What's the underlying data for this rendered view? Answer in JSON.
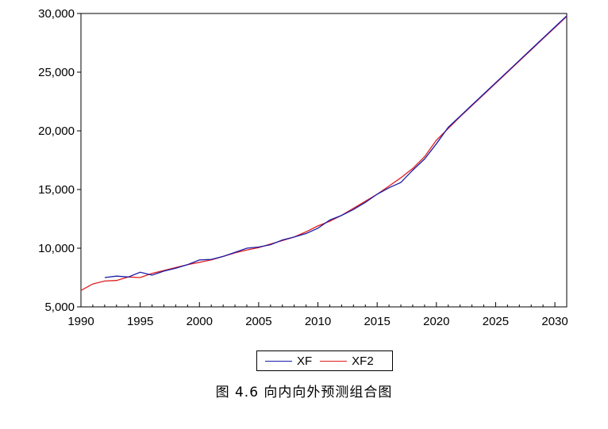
{
  "chart_data": {
    "type": "line",
    "title": "",
    "xlabel": "",
    "ylabel": "",
    "xlim": [
      1990,
      2031
    ],
    "ylim": [
      5000,
      30000
    ],
    "x_ticks": [
      1990,
      1995,
      2000,
      2005,
      2010,
      2015,
      2020,
      2025,
      2030
    ],
    "y_ticks": [
      5000,
      10000,
      15000,
      20000,
      25000,
      30000
    ],
    "x_tick_labels": [
      "1990",
      "1995",
      "2000",
      "2005",
      "2010",
      "2015",
      "2020",
      "2025",
      "2030"
    ],
    "y_tick_labels": [
      "5,000",
      "10,000",
      "15,000",
      "20,000",
      "25,000",
      "30,000"
    ],
    "legend_position": "bottom-center",
    "grid": false,
    "series": [
      {
        "name": "XF",
        "color": "#1c1ca8",
        "x": [
          1992,
          1993,
          1994,
          1995,
          1996,
          1997,
          1998,
          1999,
          2000,
          2001,
          2002,
          2003,
          2004,
          2005,
          2006,
          2007,
          2008,
          2009,
          2010,
          2011,
          2012,
          2013,
          2014,
          2015,
          2016,
          2017,
          2018,
          2019,
          2020,
          2021,
          2022,
          2023,
          2024,
          2025,
          2026,
          2027,
          2028,
          2029,
          2030,
          2031
        ],
        "y": [
          7500,
          7620,
          7550,
          7950,
          7700,
          8050,
          8300,
          8600,
          9000,
          9050,
          9300,
          9650,
          10000,
          10100,
          10300,
          10700,
          10950,
          11250,
          11700,
          12400,
          12800,
          13300,
          13900,
          14600,
          15150,
          15600,
          16650,
          17600,
          18900,
          20300,
          21250,
          22200,
          23150,
          24100,
          25050,
          26000,
          26950,
          27900,
          28850,
          29800
        ]
      },
      {
        "name": "XF2",
        "color": "#e01c1c",
        "x": [
          1990,
          1991,
          1992,
          1993,
          1994,
          1995,
          1996,
          1997,
          1998,
          1999,
          2000,
          2001,
          2002,
          2003,
          2004,
          2005,
          2006,
          2007,
          2008,
          2009,
          2010,
          2011,
          2012,
          2013,
          2014,
          2015,
          2016,
          2017,
          2018,
          2019,
          2020,
          2021,
          2022,
          2023,
          2024,
          2025,
          2026,
          2027,
          2028,
          2029,
          2030,
          2031
        ],
        "y": [
          6400,
          6950,
          7200,
          7250,
          7550,
          7500,
          7850,
          8100,
          8350,
          8600,
          8800,
          9000,
          9300,
          9600,
          9850,
          10050,
          10350,
          10650,
          10950,
          11400,
          11900,
          12300,
          12800,
          13400,
          14000,
          14600,
          15300,
          16000,
          16800,
          17800,
          19200,
          20200,
          21200,
          22150,
          23100,
          24050,
          25000,
          25950,
          26900,
          27850,
          28800,
          29750
        ]
      }
    ]
  },
  "caption": "图 4.6 向内向外预测组合图"
}
